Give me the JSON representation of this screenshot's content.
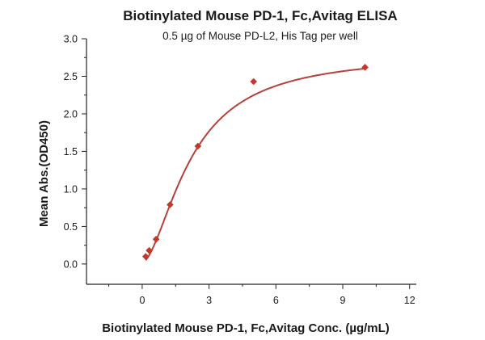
{
  "chart_data": {
    "type": "scatter",
    "title": "Biotinylated Mouse PD-1, Fc,Avitag ELISA",
    "subtitle": "0.5 µg of Mouse PD-L2, His Tag per well",
    "xlabel": "Biotinylated Mouse PD-1, Fc,Avitag Conc. (µg/mL)",
    "ylabel": "Mean Abs.(OD450)",
    "xlim": [
      -2.5,
      12.3
    ],
    "ylim": [
      -0.27,
      3.0
    ],
    "xticks": [
      0,
      3,
      6,
      9,
      12
    ],
    "xtick_labels": [
      "0",
      "3",
      "6",
      "9",
      "12"
    ],
    "yticks": [
      0.0,
      0.5,
      1.0,
      1.5,
      2.0,
      2.5,
      3.0
    ],
    "ytick_labels": [
      "0.0",
      "0.5",
      "1.0",
      "1.5",
      "2.0",
      "2.5",
      "3.0"
    ],
    "grid": false,
    "legend": "none",
    "series": [
      {
        "points": [
          {
            "x": 0.156,
            "y": 0.1
          },
          {
            "x": 0.313,
            "y": 0.18
          },
          {
            "x": 0.625,
            "y": 0.33
          },
          {
            "x": 1.25,
            "y": 0.79
          },
          {
            "x": 2.5,
            "y": 1.57
          },
          {
            "x": 5.0,
            "y": 2.43
          },
          {
            "x": 10.0,
            "y": 2.62
          }
        ],
        "marker": "diamond",
        "color": "#c0392b"
      }
    ],
    "fit": {
      "type": "4PL",
      "min": 0.02,
      "max": 2.8,
      "ec50": 2.2,
      "hill": 1.7,
      "x_range": [
        0.156,
        10.0
      ],
      "color": "#b5413a"
    }
  }
}
